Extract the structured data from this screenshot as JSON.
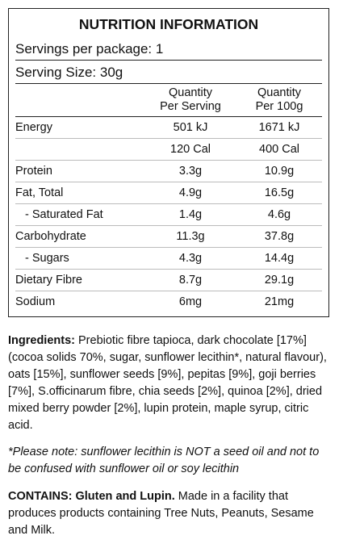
{
  "panel": {
    "title": "NUTRITION INFORMATION",
    "servings": "Servings per package: 1",
    "serving_size": "Serving Size: 30g",
    "columns": [
      [
        "Quantity",
        "Per Serving"
      ],
      [
        "Quantity",
        "Per 100g"
      ]
    ],
    "rows": [
      {
        "label": "Energy",
        "values": [
          "501 kJ",
          "1671 kJ"
        ]
      },
      {
        "values": [
          "120 Cal",
          "400 Cal"
        ]
      },
      {
        "label": "Protein",
        "values": [
          "3.3g",
          "10.9g"
        ]
      },
      {
        "label": "Fat, Total",
        "values": [
          "4.9g",
          "16.5g"
        ]
      },
      {
        "label": "- Saturated Fat",
        "values": [
          "1.4g",
          "4.6g"
        ]
      },
      {
        "label": "Carbohydrate",
        "values": [
          "11.3g",
          "37.8g"
        ]
      },
      {
        "label": "- Sugars",
        "values": [
          "4.3g",
          "14.4g"
        ]
      },
      {
        "label": "Dietary Fibre",
        "values": [
          "8.7g",
          "29.1g"
        ]
      },
      {
        "label": "Sodium",
        "values": [
          "6mg",
          "21mg"
        ]
      }
    ]
  },
  "ingredients": {
    "heading": "Ingredients:",
    "text": "Prebiotic fibre tapioca, dark chocolate [17%] (cocoa solids 70%, sugar, sunflower lecithin*, natural flavour), oats [15%], sunflower seeds [9%], pepitas [9%], goji berries [7%], S.officinarum fibre, chia seeds [2%], quinoa [2%], dried mixed berry powder [2%], lupin protein, maple syrup, citric acid."
  },
  "note": "*Please note: sunflower lecithin is NOT a seed oil and not to be confused with sunflower oil or soy lecithin",
  "contains": {
    "heading": "CONTAINS: Gluten and Lupin.",
    "text": "Made in a facility that produces products containing Tree Nuts, Peanuts, Sesame and Milk."
  }
}
